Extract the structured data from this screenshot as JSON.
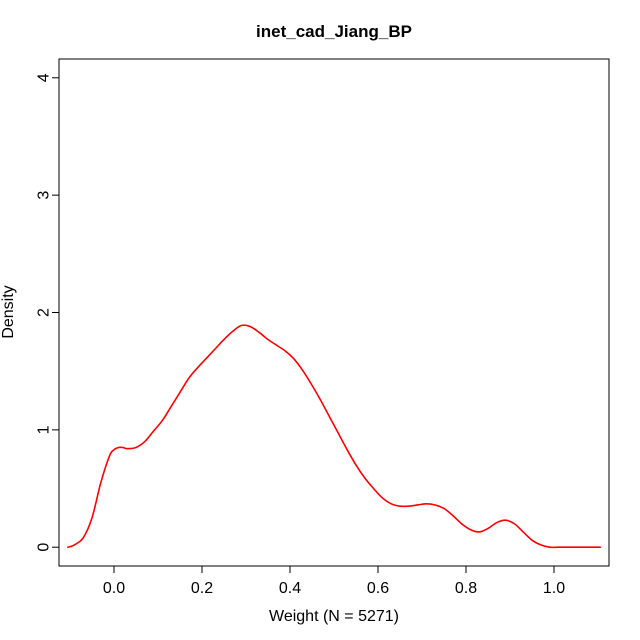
{
  "chart_data": {
    "type": "line",
    "title": "inet_cad_Jiang_BP",
    "xlabel": "Weight (N = 5271)",
    "ylabel": "Density",
    "xlim": [
      -0.125,
      1.125
    ],
    "ylim": [
      -0.16,
      4.16
    ],
    "xticks": [
      0.0,
      0.2,
      0.4,
      0.6,
      0.8,
      1.0
    ],
    "xtick_labels": [
      "0.0",
      "0.2",
      "0.4",
      "0.6",
      "0.8",
      "1.0"
    ],
    "yticks": [
      0,
      1,
      2,
      3,
      4
    ],
    "ytick_labels": [
      "0",
      "1",
      "2",
      "3",
      "4"
    ],
    "grid": false,
    "series": [
      {
        "color": "#ff0000",
        "x": [
          -0.105,
          -0.09,
          -0.07,
          -0.05,
          -0.03,
          -0.01,
          0.0,
          0.01,
          0.02,
          0.03,
          0.05,
          0.07,
          0.09,
          0.11,
          0.13,
          0.15,
          0.17,
          0.19,
          0.21,
          0.23,
          0.25,
          0.27,
          0.29,
          0.31,
          0.33,
          0.35,
          0.37,
          0.39,
          0.41,
          0.43,
          0.45,
          0.47,
          0.49,
          0.51,
          0.53,
          0.55,
          0.57,
          0.59,
          0.61,
          0.63,
          0.65,
          0.67,
          0.69,
          0.71,
          0.73,
          0.75,
          0.77,
          0.79,
          0.81,
          0.83,
          0.85,
          0.87,
          0.89,
          0.91,
          0.93,
          0.95,
          0.97,
          0.99,
          1.01,
          1.03,
          1.05,
          1.07,
          1.09,
          1.105
        ],
        "y": [
          0.0,
          0.02,
          0.08,
          0.25,
          0.55,
          0.78,
          0.83,
          0.85,
          0.85,
          0.84,
          0.85,
          0.9,
          0.99,
          1.08,
          1.2,
          1.32,
          1.44,
          1.53,
          1.61,
          1.69,
          1.77,
          1.84,
          1.89,
          1.88,
          1.83,
          1.77,
          1.72,
          1.67,
          1.6,
          1.5,
          1.38,
          1.25,
          1.11,
          0.97,
          0.83,
          0.7,
          0.59,
          0.5,
          0.42,
          0.37,
          0.35,
          0.35,
          0.36,
          0.37,
          0.36,
          0.33,
          0.27,
          0.2,
          0.15,
          0.13,
          0.16,
          0.21,
          0.23,
          0.2,
          0.13,
          0.06,
          0.02,
          0.0,
          0.0,
          0.0,
          0.0,
          0.0,
          0.0,
          0.0
        ]
      }
    ]
  }
}
